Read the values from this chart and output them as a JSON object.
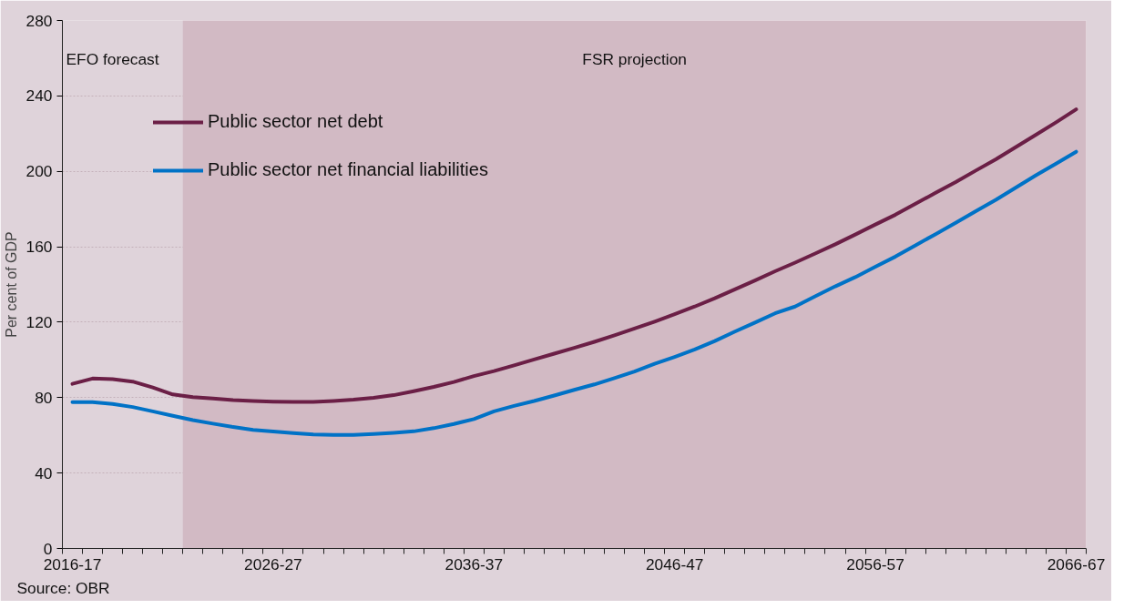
{
  "chart_data": {
    "type": "line",
    "ylabel": "Per cent of GDP",
    "categories": [
      "2016-17",
      null,
      null,
      null,
      null,
      null,
      null,
      null,
      null,
      null,
      "2026-27",
      null,
      null,
      null,
      null,
      null,
      null,
      null,
      null,
      null,
      "2036-37",
      null,
      null,
      null,
      null,
      null,
      null,
      null,
      null,
      null,
      "2046-47",
      null,
      null,
      null,
      null,
      null,
      null,
      null,
      null,
      null,
      "2056-57",
      null,
      null,
      null,
      null,
      null,
      null,
      null,
      null,
      null,
      "2066-67"
    ],
    "series": [
      {
        "name": "Public sector net debt",
        "color": "#6b1f46",
        "values": [
          87.3,
          90.1,
          89.8,
          88.5,
          85.4,
          81.7,
          80.3,
          79.5,
          78.7,
          78.2,
          77.9,
          77.7,
          77.7,
          78.2,
          78.9,
          79.9,
          81.3,
          83.4,
          85.7,
          88.3,
          91.4,
          94.1,
          97.1,
          100.2,
          103.3,
          106.4,
          109.6,
          113,
          116.6,
          120.3,
          124.2,
          128.3,
          132.7,
          137.4,
          142.1,
          147,
          151.6,
          156.4,
          161.3,
          166.5,
          171.8,
          177,
          182.8,
          188.6,
          194.3,
          200.4,
          206.4,
          212.9,
          219.4,
          226,
          232.9
        ]
      },
      {
        "name": "Public sector net financial liabilities",
        "color": "#0072c6",
        "values": [
          77.6,
          77.6,
          76.6,
          75,
          72.7,
          70.4,
          68.1,
          66.2,
          64.4,
          62.9,
          62,
          61.2,
          60.5,
          60.2,
          60.2,
          60.7,
          61.3,
          62.1,
          63.8,
          66,
          68.6,
          72.7,
          75.6,
          78.2,
          81.1,
          84.1,
          87,
          90.3,
          93.8,
          97.9,
          101.6,
          105.5,
          110,
          115,
          119.8,
          124.7,
          128.3,
          133.7,
          139,
          143.9,
          149.4,
          154.8,
          160.8,
          166.7,
          172.7,
          178.9,
          184.9,
          191.4,
          197.9,
          204.1,
          210.4
        ]
      }
    ],
    "ylim": [
      0,
      280
    ],
    "yticks": [
      0,
      40,
      80,
      120,
      160,
      200,
      240,
      280
    ],
    "grid": "y",
    "legend": "top left",
    "line_style": "solid",
    "marker": "none",
    "annotations": [
      "EFO forecast",
      "FSR projection",
      "Source: OBR"
    ]
  }
}
